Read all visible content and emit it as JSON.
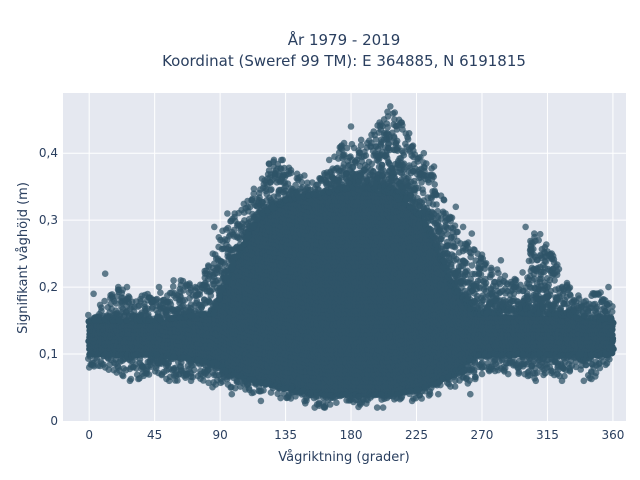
{
  "chart_data": {
    "type": "scatter",
    "title_line1": "År 1979 - 2019",
    "title_line2": "Koordinat (Sweref 99 TM): E 364885, N 6191815",
    "xlabel": "Vågriktning (grader)",
    "ylabel": "Signifikant våghöjd (m)",
    "xlim": [
      -18,
      369
    ],
    "ylim": [
      0,
      0.49
    ],
    "xticks": [
      0,
      45,
      90,
      135,
      180,
      225,
      270,
      315,
      360
    ],
    "yticks": [
      0,
      0.1,
      0.2,
      0.3,
      0.4
    ],
    "ytick_labels": [
      "0",
      "0,1",
      "0,2",
      "0,3",
      "0,4"
    ],
    "grid": true,
    "marker_color": "#2f5468",
    "plot_bg": "#e5e8f0",
    "grid_color": "#ffffff",
    "envelope": [
      {
        "dir": 0,
        "hmin": 0.08,
        "hmax": 0.16
      },
      {
        "dir": 10,
        "hmin": 0.08,
        "hmax": 0.18
      },
      {
        "dir": 20,
        "hmin": 0.07,
        "hmax": 0.2
      },
      {
        "dir": 30,
        "hmin": 0.06,
        "hmax": 0.19
      },
      {
        "dir": 45,
        "hmin": 0.07,
        "hmax": 0.19
      },
      {
        "dir": 55,
        "hmin": 0.06,
        "hmax": 0.2
      },
      {
        "dir": 65,
        "hmin": 0.06,
        "hmax": 0.21
      },
      {
        "dir": 75,
        "hmin": 0.06,
        "hmax": 0.2
      },
      {
        "dir": 85,
        "hmin": 0.05,
        "hmax": 0.25
      },
      {
        "dir": 95,
        "hmin": 0.05,
        "hmax": 0.3
      },
      {
        "dir": 105,
        "hmin": 0.04,
        "hmax": 0.32
      },
      {
        "dir": 115,
        "hmin": 0.04,
        "hmax": 0.35
      },
      {
        "dir": 125,
        "hmin": 0.04,
        "hmax": 0.39
      },
      {
        "dir": 135,
        "hmin": 0.03,
        "hmax": 0.39
      },
      {
        "dir": 145,
        "hmin": 0.03,
        "hmax": 0.37
      },
      {
        "dir": 155,
        "hmin": 0.02,
        "hmax": 0.36
      },
      {
        "dir": 165,
        "hmin": 0.02,
        "hmax": 0.39
      },
      {
        "dir": 175,
        "hmin": 0.03,
        "hmax": 0.42
      },
      {
        "dir": 185,
        "hmin": 0.02,
        "hmax": 0.41
      },
      {
        "dir": 195,
        "hmin": 0.03,
        "hmax": 0.43
      },
      {
        "dir": 205,
        "hmin": 0.03,
        "hmax": 0.47
      },
      {
        "dir": 215,
        "hmin": 0.03,
        "hmax": 0.45
      },
      {
        "dir": 225,
        "hmin": 0.03,
        "hmax": 0.4
      },
      {
        "dir": 235,
        "hmin": 0.04,
        "hmax": 0.38
      },
      {
        "dir": 245,
        "hmin": 0.05,
        "hmax": 0.32
      },
      {
        "dir": 255,
        "hmin": 0.05,
        "hmax": 0.28
      },
      {
        "dir": 265,
        "hmin": 0.06,
        "hmax": 0.26
      },
      {
        "dir": 275,
        "hmin": 0.07,
        "hmax": 0.24
      },
      {
        "dir": 285,
        "hmin": 0.07,
        "hmax": 0.22
      },
      {
        "dir": 295,
        "hmin": 0.07,
        "hmax": 0.21
      },
      {
        "dir": 305,
        "hmin": 0.06,
        "hmax": 0.29
      },
      {
        "dir": 315,
        "hmin": 0.07,
        "hmax": 0.27
      },
      {
        "dir": 325,
        "hmin": 0.06,
        "hmax": 0.22
      },
      {
        "dir": 335,
        "hmin": 0.08,
        "hmax": 0.19
      },
      {
        "dir": 345,
        "hmin": 0.06,
        "hmax": 0.19
      },
      {
        "dir": 355,
        "hmin": 0.08,
        "hmax": 0.2
      },
      {
        "dir": 360,
        "hmin": 0.1,
        "hmax": 0.17
      }
    ],
    "core_band": [
      {
        "dir": 0,
        "lo": 0.1,
        "hi": 0.15
      },
      {
        "dir": 45,
        "lo": 0.1,
        "hi": 0.15
      },
      {
        "dir": 85,
        "lo": 0.09,
        "hi": 0.16
      },
      {
        "dir": 100,
        "lo": 0.07,
        "hi": 0.24
      },
      {
        "dir": 115,
        "lo": 0.06,
        "hi": 0.3
      },
      {
        "dir": 135,
        "lo": 0.05,
        "hi": 0.33
      },
      {
        "dir": 160,
        "lo": 0.04,
        "hi": 0.34
      },
      {
        "dir": 185,
        "lo": 0.04,
        "hi": 0.35
      },
      {
        "dir": 210,
        "lo": 0.04,
        "hi": 0.34
      },
      {
        "dir": 230,
        "lo": 0.05,
        "hi": 0.3
      },
      {
        "dir": 250,
        "lo": 0.07,
        "hi": 0.2
      },
      {
        "dir": 265,
        "lo": 0.1,
        "hi": 0.16
      },
      {
        "dir": 315,
        "lo": 0.1,
        "hi": 0.16
      },
      {
        "dir": 360,
        "lo": 0.1,
        "hi": 0.15
      }
    ],
    "outliers": [
      {
        "x": 207,
        "y": 0.47
      },
      {
        "x": 200,
        "y": 0.44
      },
      {
        "x": 213,
        "y": 0.45
      },
      {
        "x": 180,
        "y": 0.44
      },
      {
        "x": 187,
        "y": 0.42
      },
      {
        "x": 205,
        "y": 0.43
      },
      {
        "x": 222,
        "y": 0.41
      },
      {
        "x": 230,
        "y": 0.4
      },
      {
        "x": 197,
        "y": 0.41
      },
      {
        "x": 127,
        "y": 0.39
      },
      {
        "x": 133,
        "y": 0.39
      },
      {
        "x": 165,
        "y": 0.39
      },
      {
        "x": 173,
        "y": 0.41
      },
      {
        "x": 184,
        "y": 0.39
      },
      {
        "x": 237,
        "y": 0.38
      },
      {
        "x": 233,
        "y": 0.36
      },
      {
        "x": 95,
        "y": 0.31
      },
      {
        "x": 100,
        "y": 0.31
      },
      {
        "x": 86,
        "y": 0.29
      },
      {
        "x": 245,
        "y": 0.31
      },
      {
        "x": 252,
        "y": 0.32
      },
      {
        "x": 257,
        "y": 0.29
      },
      {
        "x": 263,
        "y": 0.28
      },
      {
        "x": 300,
        "y": 0.29
      },
      {
        "x": 309,
        "y": 0.27
      },
      {
        "x": 267,
        "y": 0.25
      },
      {
        "x": 283,
        "y": 0.24
      },
      {
        "x": 310,
        "y": 0.23
      },
      {
        "x": 320,
        "y": 0.22
      },
      {
        "x": 11,
        "y": 0.22
      },
      {
        "x": 3,
        "y": 0.19
      },
      {
        "x": 20,
        "y": 0.2
      },
      {
        "x": 26,
        "y": 0.2
      },
      {
        "x": 48,
        "y": 0.2
      },
      {
        "x": 58,
        "y": 0.21
      },
      {
        "x": 63,
        "y": 0.21
      },
      {
        "x": 73,
        "y": 0.2
      },
      {
        "x": 85,
        "y": 0.25
      },
      {
        "x": 292,
        "y": 0.2
      },
      {
        "x": 303,
        "y": 0.2
      },
      {
        "x": 315,
        "y": 0.2
      },
      {
        "x": 350,
        "y": 0.19
      },
      {
        "x": 357,
        "y": 0.2
      },
      {
        "x": 28,
        "y": 0.06
      },
      {
        "x": 11,
        "y": 0.08
      },
      {
        "x": 0,
        "y": 0.08
      },
      {
        "x": 20,
        "y": 0.08
      },
      {
        "x": 50,
        "y": 0.07
      },
      {
        "x": 55,
        "y": 0.06
      },
      {
        "x": 70,
        "y": 0.06
      },
      {
        "x": 307,
        "y": 0.06
      },
      {
        "x": 322,
        "y": 0.08
      },
      {
        "x": 325,
        "y": 0.06
      },
      {
        "x": 340,
        "y": 0.06
      },
      {
        "x": 270,
        "y": 0.07
      },
      {
        "x": 262,
        "y": 0.04
      },
      {
        "x": 288,
        "y": 0.07
      },
      {
        "x": 295,
        "y": 0.08
      },
      {
        "x": 331,
        "y": 0.09
      },
      {
        "x": 355,
        "y": 0.1
      },
      {
        "x": 360,
        "y": 0.12
      },
      {
        "x": 98,
        "y": 0.04
      },
      {
        "x": 118,
        "y": 0.03
      },
      {
        "x": 148,
        "y": 0.03
      },
      {
        "x": 155,
        "y": 0.02
      },
      {
        "x": 162,
        "y": 0.02
      },
      {
        "x": 198,
        "y": 0.02
      },
      {
        "x": 202,
        "y": 0.02
      },
      {
        "x": 222,
        "y": 0.03
      },
      {
        "x": 240,
        "y": 0.04
      }
    ]
  }
}
